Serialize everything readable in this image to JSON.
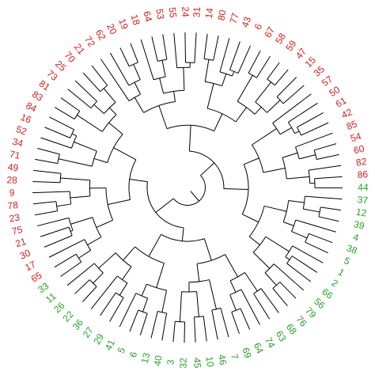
{
  "leaves": [
    {
      "label": "72",
      "color": "#d42020"
    },
    {
      "label": "62",
      "color": "#d42020"
    },
    {
      "label": "20",
      "color": "#d42020"
    },
    {
      "label": "19",
      "color": "#d42020"
    },
    {
      "label": "18",
      "color": "#d42020"
    },
    {
      "label": "64",
      "color": "#d42020"
    },
    {
      "label": "53",
      "color": "#d42020"
    },
    {
      "label": "55",
      "color": "#d42020"
    },
    {
      "label": "24",
      "color": "#d42020"
    },
    {
      "label": "31",
      "color": "#d42020"
    },
    {
      "label": "14",
      "color": "#d42020"
    },
    {
      "label": "80",
      "color": "#d42020"
    },
    {
      "label": "77",
      "color": "#d42020"
    },
    {
      "label": "43",
      "color": "#d42020"
    },
    {
      "label": "6",
      "color": "#d42020"
    },
    {
      "label": "67",
      "color": "#d42020"
    },
    {
      "label": "58",
      "color": "#d42020"
    },
    {
      "label": "59",
      "color": "#d42020"
    },
    {
      "label": "47",
      "color": "#d42020"
    },
    {
      "label": "15",
      "color": "#d42020"
    },
    {
      "label": "35",
      "color": "#d42020"
    },
    {
      "label": "57",
      "color": "#d42020"
    },
    {
      "label": "50",
      "color": "#d42020"
    },
    {
      "label": "61",
      "color": "#d42020"
    },
    {
      "label": "42",
      "color": "#d42020"
    },
    {
      "label": "85",
      "color": "#d42020"
    },
    {
      "label": "54",
      "color": "#d42020"
    },
    {
      "label": "60",
      "color": "#d42020"
    },
    {
      "label": "82",
      "color": "#d42020"
    },
    {
      "label": "86",
      "color": "#d42020"
    },
    {
      "label": "44",
      "color": "#2aa02a"
    },
    {
      "label": "37",
      "color": "#2aa02a"
    },
    {
      "label": "12",
      "color": "#2aa02a"
    },
    {
      "label": "39",
      "color": "#2aa02a"
    },
    {
      "label": "4",
      "color": "#2aa02a"
    },
    {
      "label": "38",
      "color": "#2aa02a"
    },
    {
      "label": "5",
      "color": "#2aa02a"
    },
    {
      "label": "1",
      "color": "#2aa02a"
    },
    {
      "label": "2",
      "color": "#2aa02a"
    },
    {
      "label": "66",
      "color": "#2aa02a"
    },
    {
      "label": "56",
      "color": "#2aa02a"
    },
    {
      "label": "79",
      "color": "#2aa02a"
    },
    {
      "label": "76",
      "color": "#2aa02a"
    },
    {
      "label": "68",
      "color": "#2aa02a"
    },
    {
      "label": "63",
      "color": "#2aa02a"
    },
    {
      "label": "74",
      "color": "#2aa02a"
    },
    {
      "label": "64",
      "color": "#2aa02a"
    },
    {
      "label": "69",
      "color": "#2aa02a"
    },
    {
      "label": "7",
      "color": "#2aa02a"
    },
    {
      "label": "46",
      "color": "#2aa02a"
    },
    {
      "label": "10",
      "color": "#2aa02a"
    },
    {
      "label": "45",
      "color": "#2aa02a"
    },
    {
      "label": "32",
      "color": "#2aa02a"
    },
    {
      "label": "3",
      "color": "#2aa02a"
    },
    {
      "label": "40",
      "color": "#2aa02a"
    },
    {
      "label": "13",
      "color": "#2aa02a"
    },
    {
      "label": "6",
      "color": "#2aa02a"
    },
    {
      "label": "5",
      "color": "#2aa02a"
    },
    {
      "label": "41",
      "color": "#2aa02a"
    },
    {
      "label": "29",
      "color": "#2aa02a"
    },
    {
      "label": "27",
      "color": "#2aa02a"
    },
    {
      "label": "36",
      "color": "#2aa02a"
    },
    {
      "label": "22",
      "color": "#2aa02a"
    },
    {
      "label": "26",
      "color": "#2aa02a"
    },
    {
      "label": "11",
      "color": "#2aa02a"
    },
    {
      "label": "33",
      "color": "#2aa02a"
    },
    {
      "label": "65",
      "color": "#d42020"
    },
    {
      "label": "17",
      "color": "#d42020"
    },
    {
      "label": "30",
      "color": "#d42020"
    },
    {
      "label": "21",
      "color": "#d42020"
    },
    {
      "label": "75",
      "color": "#d42020"
    },
    {
      "label": "23",
      "color": "#d42020"
    },
    {
      "label": "78",
      "color": "#d42020"
    },
    {
      "label": "9",
      "color": "#d42020"
    },
    {
      "label": "28",
      "color": "#d42020"
    },
    {
      "label": "49",
      "color": "#d42020"
    },
    {
      "label": "71",
      "color": "#d42020"
    },
    {
      "label": "34",
      "color": "#d42020"
    },
    {
      "label": "52",
      "color": "#d42020"
    },
    {
      "label": "16",
      "color": "#d42020"
    },
    {
      "label": "84",
      "color": "#d42020"
    },
    {
      "label": "83",
      "color": "#d42020"
    },
    {
      "label": "81",
      "color": "#d42020"
    },
    {
      "label": "73",
      "color": "#d42020"
    },
    {
      "label": "25",
      "color": "#d42020"
    },
    {
      "label": "70",
      "color": "#d42020"
    },
    {
      "label": "21",
      "color": "#d42020"
    }
  ]
}
